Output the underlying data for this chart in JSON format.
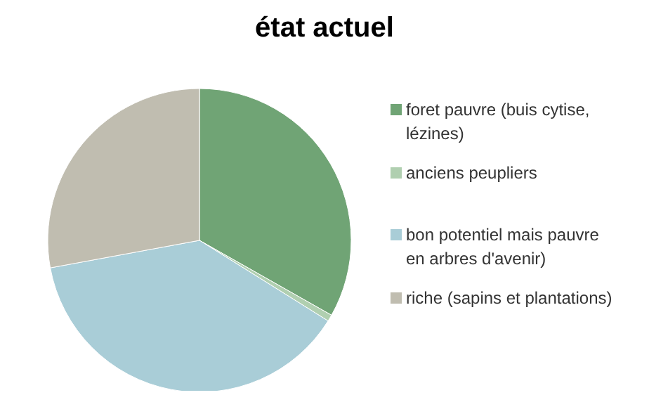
{
  "chart_data": {
    "type": "pie",
    "title": "état actuel",
    "categories": [
      "foret pauvre (buis cytise, lézines)",
      "anciens peupliers",
      "bon potentiel mais  pauvre en arbres d'avenir)",
      "riche (sapins et plantations)"
    ],
    "values": [
      33.2,
      0.7,
      38.2,
      27.9
    ],
    "colors": [
      "#70a475",
      "#b0cfb0",
      "#a9cdd7",
      "#c0bdb0"
    ],
    "legend": "right"
  }
}
